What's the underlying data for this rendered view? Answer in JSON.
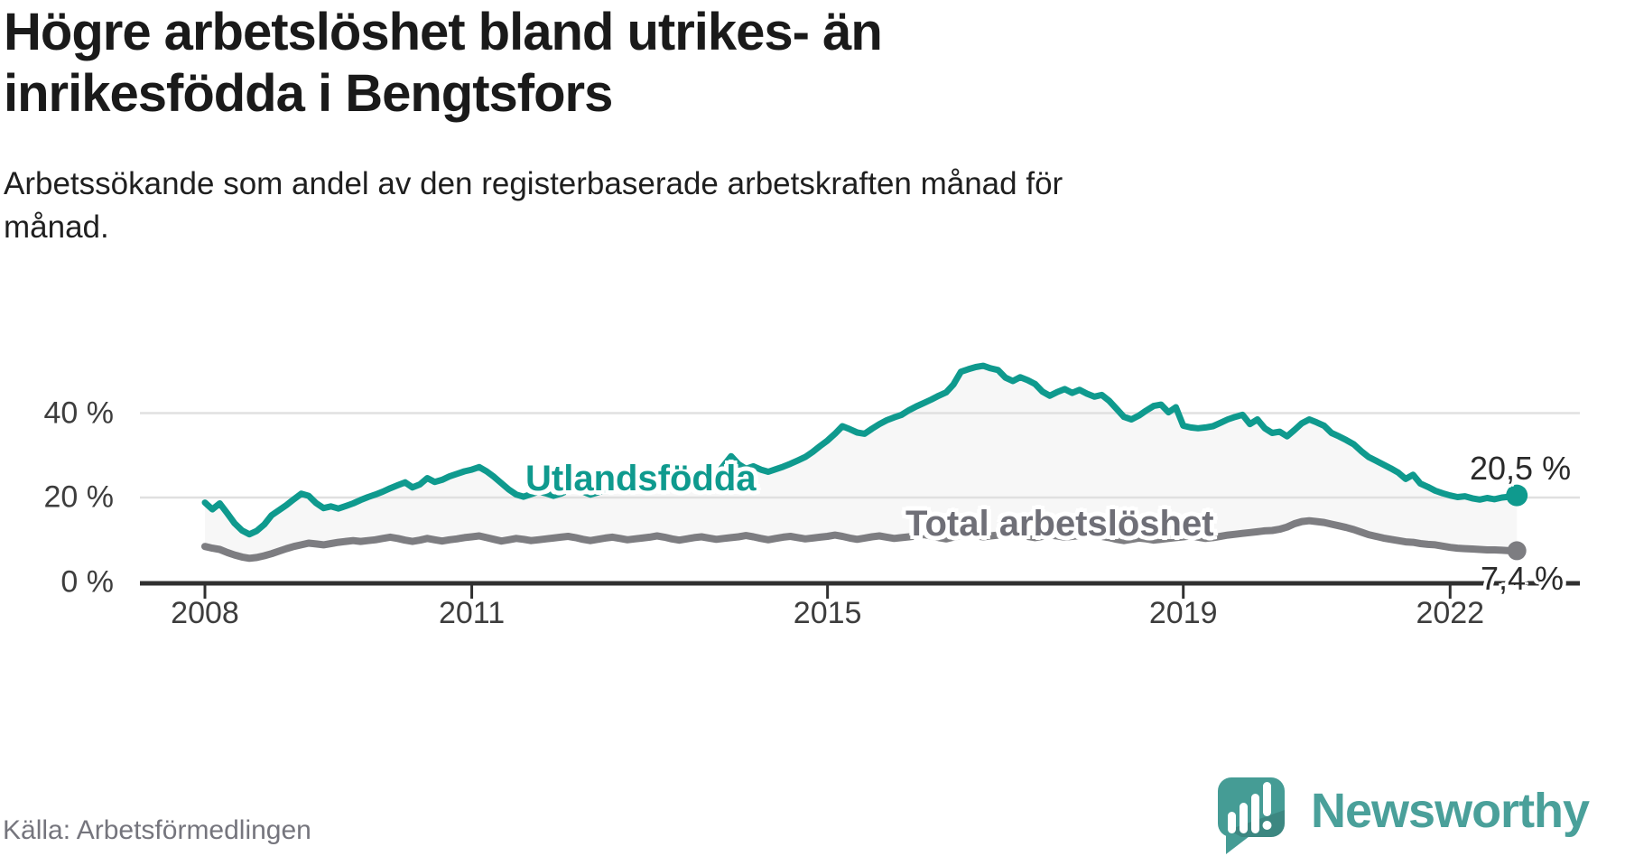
{
  "header": {
    "title_line1": "Högre arbetslöshet bland utrikes- än",
    "title_line2": "inrikesfödda i Bengtsfors",
    "subtitle_line1": "Arbetssökande som andel av den registerbaserade arbetskraften månad för",
    "subtitle_line2": "månad."
  },
  "footer": {
    "source": "Källa: Arbetsförmedlingen",
    "logo_text": "Newsworthy"
  },
  "chart_data": {
    "type": "line",
    "title": "Högre arbetslöshet bland utrikes- än inrikesfödda i Bengtsfors",
    "subtitle": "Arbetssökande som andel av den registerbaserade arbetskraften månad för månad.",
    "source": "Källa: Arbetsförmedlingen",
    "unit": "%",
    "frequency": "monthly",
    "x_start": "2008-01",
    "x_end": "2022-10",
    "grid": "horizontal",
    "legend": "inline-labels",
    "ylim": [
      0,
      55
    ],
    "x_ticks": [
      {
        "label": "2008",
        "year": 2008
      },
      {
        "label": "2011",
        "year": 2011
      },
      {
        "label": "2015",
        "year": 2015
      },
      {
        "label": "2019",
        "year": 2019
      },
      {
        "label": "2022",
        "year": 2022
      }
    ],
    "y_ticks": [
      {
        "label": "0 %",
        "value": 0
      },
      {
        "label": "20 %",
        "value": 20
      },
      {
        "label": "40 %",
        "value": 40
      }
    ],
    "colors": {
      "teal": "#0f9a8e",
      "gray": "#7d7d81",
      "fill_between": "rgba(120,120,125,0.06)",
      "gridline": "#e0e0e0",
      "axis": "#303030",
      "logo_teal": "#459c95"
    },
    "series": [
      {
        "name": "Utlandsfödda",
        "color": "#0f9a8e",
        "end_label": "20,5 %",
        "end_value": 20.5,
        "values": [
          18.8,
          17.2,
          18.6,
          16.3,
          13.9,
          12.2,
          11.3,
          12.1,
          13.6,
          15.8,
          17.0,
          18.2,
          19.6,
          20.9,
          20.4,
          18.7,
          17.5,
          17.9,
          17.4,
          18.0,
          18.6,
          19.4,
          20.1,
          20.7,
          21.4,
          22.2,
          22.9,
          23.6,
          22.4,
          23.1,
          24.6,
          23.7,
          24.2,
          25.0,
          25.6,
          26.2,
          26.6,
          27.2,
          26.2,
          24.9,
          23.4,
          21.9,
          20.7,
          20.2,
          20.8,
          21.4,
          21.0,
          20.4,
          20.9,
          21.7,
          22.3,
          21.4,
          20.7,
          21.2,
          21.9,
          22.5,
          23.0,
          22.3,
          22.8,
          23.3,
          23.8,
          24.3,
          23.6,
          22.9,
          22.3,
          22.9,
          23.4,
          24.0,
          24.5,
          25.4,
          27.6,
          29.8,
          27.9,
          26.8,
          27.4,
          26.6,
          26.1,
          26.7,
          27.3,
          28.0,
          28.8,
          29.6,
          30.8,
          32.2,
          33.5,
          35.1,
          36.9,
          36.2,
          35.4,
          35.1,
          36.3,
          37.4,
          38.3,
          39.0,
          39.6,
          40.7,
          41.6,
          42.4,
          43.2,
          44.1,
          44.9,
          46.8,
          49.8,
          50.4,
          50.9,
          51.2,
          50.6,
          50.2,
          48.4,
          47.6,
          48.5,
          47.8,
          46.9,
          45.1,
          44.1,
          45.0,
          45.7,
          44.8,
          45.5,
          44.6,
          43.9,
          44.3,
          42.9,
          41.0,
          39.1,
          38.5,
          39.4,
          40.6,
          41.7,
          42.0,
          40.2,
          41.4,
          37.0,
          36.6,
          36.4,
          36.6,
          36.9,
          37.7,
          38.5,
          39.1,
          39.6,
          37.4,
          38.5,
          36.4,
          35.3,
          35.6,
          34.5,
          36.0,
          37.6,
          38.5,
          37.8,
          37.0,
          35.3,
          34.5,
          33.6,
          32.6,
          31.0,
          29.6,
          28.7,
          27.8,
          26.9,
          25.9,
          24.4,
          25.4,
          23.3,
          22.5,
          21.6,
          21.0,
          20.5,
          20.1,
          20.3,
          19.8,
          19.5,
          19.9,
          19.6,
          20.0,
          20.2,
          20.5
        ]
      },
      {
        "name": "Total arbetslöshet",
        "color": "#7d7d81",
        "end_label": "7,4 %",
        "end_value": 7.4,
        "values": [
          8.4,
          8.0,
          7.7,
          7.0,
          6.4,
          5.9,
          5.6,
          5.8,
          6.2,
          6.7,
          7.3,
          7.9,
          8.4,
          8.8,
          9.2,
          9.0,
          8.8,
          9.1,
          9.4,
          9.6,
          9.8,
          9.6,
          9.8,
          10.0,
          10.3,
          10.6,
          10.3,
          9.9,
          9.6,
          9.9,
          10.3,
          10.0,
          9.7,
          10.0,
          10.2,
          10.5,
          10.7,
          10.9,
          10.5,
          10.1,
          9.7,
          10.0,
          10.3,
          10.1,
          9.8,
          10.0,
          10.2,
          10.4,
          10.6,
          10.8,
          10.5,
          10.1,
          9.8,
          10.1,
          10.4,
          10.6,
          10.3,
          10.0,
          10.2,
          10.4,
          10.6,
          10.9,
          10.6,
          10.2,
          9.9,
          10.2,
          10.5,
          10.7,
          10.4,
          10.1,
          10.3,
          10.5,
          10.7,
          11.0,
          10.7,
          10.3,
          10.0,
          10.3,
          10.6,
          10.8,
          10.5,
          10.2,
          10.4,
          10.6,
          10.8,
          11.1,
          10.8,
          10.4,
          10.1,
          10.4,
          10.7,
          10.9,
          10.6,
          10.3,
          10.5,
          10.7,
          10.9,
          11.2,
          10.9,
          10.5,
          10.2,
          10.6,
          11.0,
          11.2,
          10.9,
          10.7,
          10.9,
          11.1,
          11.3,
          11.5,
          11.2,
          10.8,
          10.5,
          10.8,
          11.1,
          10.9,
          10.6,
          10.8,
          11.0,
          11.2,
          11.0,
          10.8,
          10.5,
          10.1,
          9.8,
          10.1,
          10.4,
          10.2,
          9.9,
          10.1,
          10.3,
          10.5,
          10.7,
          10.9,
          10.6,
          10.3,
          10.5,
          10.8,
          11.1,
          11.3,
          11.5,
          11.7,
          11.9,
          12.1,
          12.2,
          12.5,
          13.0,
          13.8,
          14.3,
          14.5,
          14.3,
          14.1,
          13.7,
          13.3,
          12.9,
          12.4,
          11.8,
          11.2,
          10.8,
          10.4,
          10.1,
          9.8,
          9.5,
          9.4,
          9.1,
          8.9,
          8.8,
          8.5,
          8.2,
          8.0,
          7.9,
          7.8,
          7.7,
          7.6,
          7.6,
          7.5,
          7.4,
          7.4
        ]
      }
    ]
  }
}
